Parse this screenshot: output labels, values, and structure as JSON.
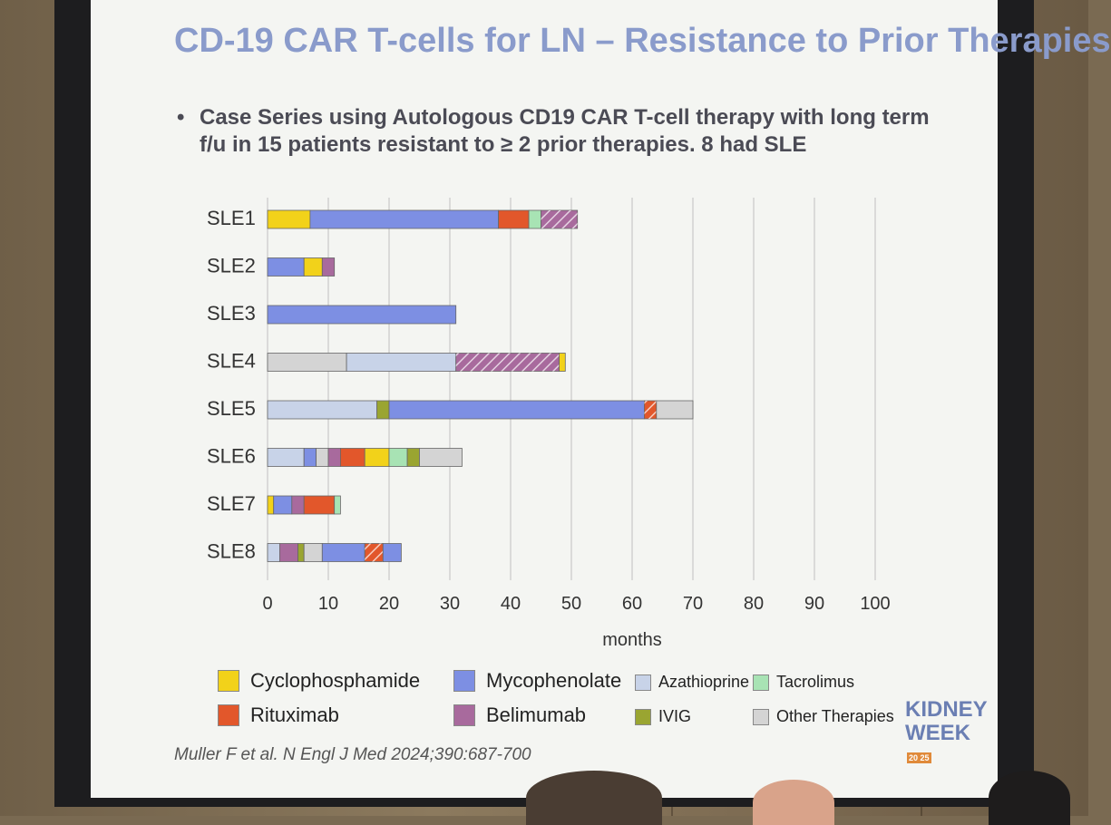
{
  "slide": {
    "title": "CD-19 CAR T-cells for LN – Resistance to Prior Therapies",
    "bullet_mark": "•",
    "bullet_line1": "Case Series using Autologous CD19 CAR T-cell therapy with long term",
    "bullet_line2": "f/u in 15 patients resistant to ≥ 2 prior therapies. 8 had SLE",
    "citation": "Muller F et al. N Engl J Med 2024;390:687-700",
    "logo_line1": "KIDNEY",
    "logo_line2": "WEEK",
    "logo_badge": "20 25"
  },
  "colors": {
    "Cyclophosphamide": "#f2d21a",
    "Rituximab": "#e2572b",
    "Mycophenolate": "#7d8fe3",
    "Belimumab": "#a86a9d",
    "Azathioprine": "#c8d3e8",
    "IVIG": "#9aa531",
    "Tacrolimus": "#a8e3b4",
    "Other Therapies": "#d4d4d4"
  },
  "legend": {
    "items": [
      {
        "label": "Cyclophosphamide",
        "key": "Cyclophosphamide"
      },
      {
        "label": "Rituximab",
        "key": "Rituximab"
      },
      {
        "label": "Mycophenolate",
        "key": "Mycophenolate"
      },
      {
        "label": "Belimumab",
        "key": "Belimumab"
      },
      {
        "label": "Azathioprine",
        "key": "Azathioprine"
      },
      {
        "label": "IVIG",
        "key": "IVIG"
      },
      {
        "label": "Tacrolimus",
        "key": "Tacrolimus"
      },
      {
        "label": "Other Therapies",
        "key": "Other Therapies"
      }
    ]
  },
  "chart_data": {
    "type": "bar",
    "orientation": "horizontal-stacked",
    "title": "",
    "xlabel": "months",
    "ylabel": "",
    "xlim": [
      0,
      100
    ],
    "xticks": [
      "0",
      "10",
      "20",
      "30",
      "40",
      "50",
      "60",
      "70",
      "80",
      "90",
      "100"
    ],
    "grid": true,
    "patients": [
      {
        "label": "SLE1",
        "segments": [
          {
            "therapy": "Cyclophosphamide",
            "start": 0,
            "end": 7
          },
          {
            "therapy": "Mycophenolate",
            "start": 7,
            "end": 38
          },
          {
            "therapy": "Rituximab",
            "start": 38,
            "end": 43
          },
          {
            "therapy": "Tacrolimus",
            "start": 43,
            "end": 45
          },
          {
            "therapy": "Belimumab",
            "start": 45,
            "end": 51,
            "hatched": true
          }
        ]
      },
      {
        "label": "SLE2",
        "segments": [
          {
            "therapy": "Mycophenolate",
            "start": 0,
            "end": 6
          },
          {
            "therapy": "Cyclophosphamide",
            "start": 6,
            "end": 9
          },
          {
            "therapy": "Belimumab",
            "start": 9,
            "end": 11
          }
        ]
      },
      {
        "label": "SLE3",
        "segments": [
          {
            "therapy": "Mycophenolate",
            "start": 0,
            "end": 31
          }
        ]
      },
      {
        "label": "SLE4",
        "segments": [
          {
            "therapy": "Other Therapies",
            "start": 0,
            "end": 13
          },
          {
            "therapy": "Azathioprine",
            "start": 13,
            "end": 31
          },
          {
            "therapy": "Belimumab",
            "start": 31,
            "end": 48,
            "hatched": true
          },
          {
            "therapy": "Cyclophosphamide",
            "start": 48,
            "end": 49
          }
        ]
      },
      {
        "label": "SLE5",
        "segments": [
          {
            "therapy": "Azathioprine",
            "start": 0,
            "end": 18
          },
          {
            "therapy": "IVIG",
            "start": 18,
            "end": 20
          },
          {
            "therapy": "Mycophenolate",
            "start": 20,
            "end": 62
          },
          {
            "therapy": "Rituximab",
            "start": 62,
            "end": 64,
            "hatched": true
          },
          {
            "therapy": "Other Therapies",
            "start": 64,
            "end": 70
          }
        ]
      },
      {
        "label": "SLE6",
        "segments": [
          {
            "therapy": "Azathioprine",
            "start": 0,
            "end": 6
          },
          {
            "therapy": "Mycophenolate",
            "start": 6,
            "end": 8
          },
          {
            "therapy": "Other Therapies",
            "start": 8,
            "end": 10
          },
          {
            "therapy": "Belimumab",
            "start": 10,
            "end": 12
          },
          {
            "therapy": "Rituximab",
            "start": 12,
            "end": 16
          },
          {
            "therapy": "Cyclophosphamide",
            "start": 16,
            "end": 20
          },
          {
            "therapy": "Tacrolimus",
            "start": 20,
            "end": 23
          },
          {
            "therapy": "IVIG",
            "start": 23,
            "end": 25
          },
          {
            "therapy": "Other Therapies",
            "start": 25,
            "end": 32
          }
        ]
      },
      {
        "label": "SLE7",
        "segments": [
          {
            "therapy": "Cyclophosphamide",
            "start": 0,
            "end": 1
          },
          {
            "therapy": "Mycophenolate",
            "start": 1,
            "end": 4
          },
          {
            "therapy": "Belimumab",
            "start": 4,
            "end": 6
          },
          {
            "therapy": "Rituximab",
            "start": 6,
            "end": 11
          },
          {
            "therapy": "Tacrolimus",
            "start": 11,
            "end": 12
          }
        ]
      },
      {
        "label": "SLE8",
        "segments": [
          {
            "therapy": "Azathioprine",
            "start": 0,
            "end": 2
          },
          {
            "therapy": "Belimumab",
            "start": 2,
            "end": 5
          },
          {
            "therapy": "IVIG",
            "start": 5,
            "end": 6
          },
          {
            "therapy": "Other Therapies",
            "start": 6,
            "end": 9
          },
          {
            "therapy": "Mycophenolate",
            "start": 9,
            "end": 16
          },
          {
            "therapy": "Rituximab",
            "start": 16,
            "end": 19,
            "hatched": true
          },
          {
            "therapy": "Mycophenolate",
            "start": 19,
            "end": 22
          }
        ]
      }
    ]
  }
}
